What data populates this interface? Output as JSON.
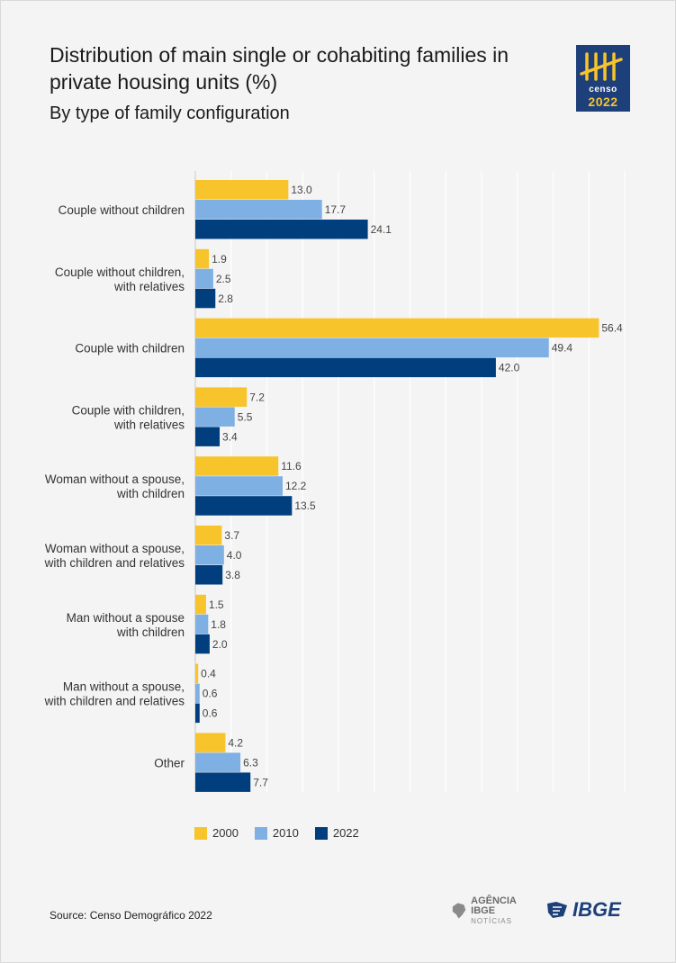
{
  "header": {
    "title": "Distribution of main single or cohabiting families in private housing units (%)",
    "subtitle": "By type of family configuration"
  },
  "logo": {
    "word": "censo",
    "year": "2022"
  },
  "footer": {
    "source": "Source: Censo Demográfico 2022",
    "agencia_main": "AGÊNCIA IBGE",
    "agencia_sub": "NOTÍCIAS",
    "ibge": "IBGE"
  },
  "colors": {
    "2000": "#f7c42b",
    "2010": "#7fb0e3",
    "2022": "#003e7e",
    "censo_logo_bg": "#1d3f7a",
    "censo_logo_accent": "#f7c42b",
    "ibge_brand": "#1d3f7a"
  },
  "chart_data": {
    "type": "bar",
    "orientation": "horizontal",
    "title": "Distribution of main single or cohabiting families in private housing units (%)",
    "subtitle": "By type of family configuration",
    "categories": [
      "Couple without children",
      "Couple without children, with relatives",
      "Couple with children",
      "Couple with children, with relatives",
      "Woman without a spouse, with children",
      "Woman without a spouse, with children and relatives",
      "Man without a spouse with children",
      "Man without a spouse, with children and relatives",
      "Other"
    ],
    "category_lines": [
      [
        "Couple without children"
      ],
      [
        "Couple without children,",
        "with relatives"
      ],
      [
        "Couple with children"
      ],
      [
        "Couple with children,",
        "with relatives"
      ],
      [
        "Woman without a spouse,",
        "with children"
      ],
      [
        "Woman without a spouse,",
        "with children and relatives"
      ],
      [
        "Man without a spouse",
        "with children"
      ],
      [
        "Man without a spouse,",
        "with children and relatives"
      ],
      [
        "Other"
      ]
    ],
    "series": [
      {
        "name": "2000",
        "values": [
          13.0,
          1.9,
          56.4,
          7.2,
          11.6,
          3.7,
          1.5,
          0.4,
          4.2
        ],
        "labels": [
          "13.0",
          "1.9",
          "56.4",
          "7.2",
          "11.6",
          "3.7",
          "1.5",
          "0.4",
          "4.2"
        ]
      },
      {
        "name": "2010",
        "values": [
          17.7,
          2.5,
          49.4,
          5.5,
          12.2,
          4.0,
          1.8,
          0.6,
          6.3
        ],
        "labels": [
          "17.7",
          "2.5",
          "49.4",
          "5.5",
          "12.2",
          "4.0",
          "1.8",
          "0.6",
          "6.3"
        ]
      },
      {
        "name": "2022",
        "values": [
          24.1,
          2.8,
          42.0,
          3.4,
          13.5,
          3.8,
          2.0,
          0.6,
          7.7
        ],
        "labels": [
          "24.1",
          "2.8",
          "42.0",
          "3.4",
          "13.5",
          "3.8",
          "2.0",
          "0.6",
          "7.7"
        ]
      }
    ],
    "xlim": [
      0,
      60
    ],
    "grid": true,
    "legend": "bottom-left",
    "xlabel": "",
    "ylabel": ""
  }
}
